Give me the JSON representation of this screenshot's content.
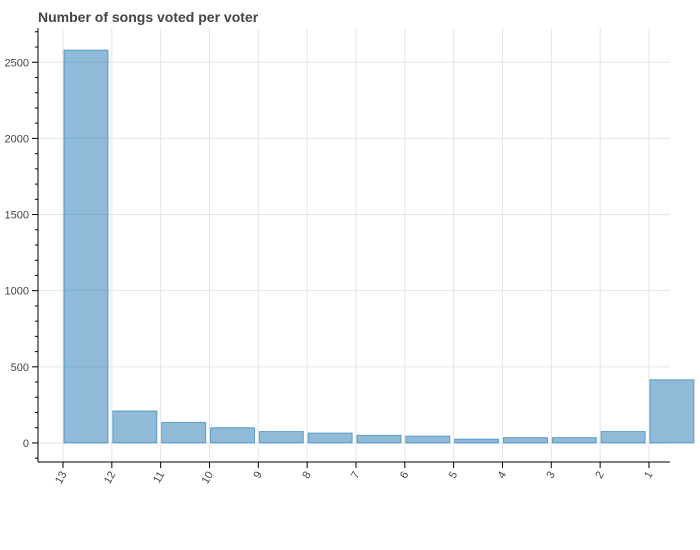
{
  "chart_data": {
    "type": "bar",
    "title": "Number of songs voted per voter",
    "xlabel": "",
    "ylabel": "",
    "categories": [
      "13",
      "12",
      "11",
      "10",
      "9",
      "8",
      "7",
      "6",
      "5",
      "4",
      "3",
      "2",
      "1"
    ],
    "values": [
      2580,
      210,
      135,
      100,
      75,
      65,
      50,
      45,
      25,
      35,
      35,
      75,
      415
    ],
    "ylim": [
      -125,
      2725
    ],
    "yticks": [
      "0",
      "500",
      "1000",
      "1500",
      "2000",
      "2500"
    ],
    "grid": true,
    "bar_color": "#1f77b4"
  }
}
